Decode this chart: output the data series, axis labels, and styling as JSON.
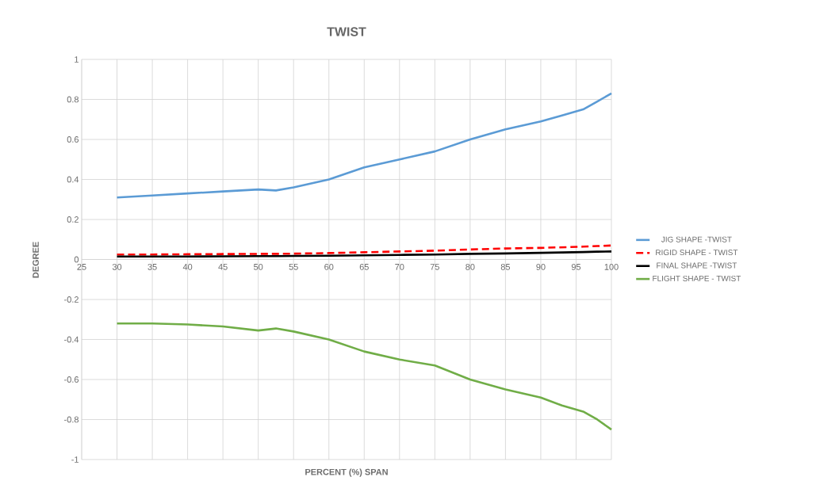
{
  "chart_data": {
    "type": "line",
    "title": "TWIST",
    "xlabel": "PERCENT (%) SPAN",
    "ylabel": "DEGREE",
    "xlim": [
      25,
      100
    ],
    "xticks": [
      25,
      30,
      35,
      40,
      45,
      50,
      55,
      60,
      65,
      70,
      75,
      80,
      85,
      90,
      95,
      100
    ],
    "ylim": [
      -1,
      1
    ],
    "yticks": [
      -1,
      -0.8,
      -0.6,
      -0.4,
      -0.2,
      0,
      0.2,
      0.4,
      0.6,
      0.8,
      1
    ],
    "grid": true,
    "legend": "right",
    "marker": "none",
    "x": [
      30,
      35,
      40,
      45,
      50,
      52.5,
      55,
      60,
      65,
      70,
      75,
      80,
      85,
      90,
      93,
      96,
      98,
      100
    ],
    "series": [
      {
        "name": "JIG SHAPE -TWIST",
        "color": "#5b9bd5",
        "line_style": "solid",
        "values": [
          0.31,
          0.32,
          0.33,
          0.34,
          0.35,
          0.345,
          0.36,
          0.4,
          0.46,
          0.5,
          0.54,
          0.6,
          0.65,
          0.69,
          0.72,
          0.75,
          0.79,
          0.83
        ]
      },
      {
        "name": "RIGID SHAPE - TWIST",
        "color": "#ff0000",
        "line_style": "dashed",
        "values": [
          0.025,
          0.025,
          0.026,
          0.027,
          0.028,
          0.028,
          0.029,
          0.032,
          0.036,
          0.04,
          0.044,
          0.05,
          0.055,
          0.058,
          0.061,
          0.064,
          0.067,
          0.07
        ]
      },
      {
        "name": "FINAL SHAPE -TWIST",
        "color": "#000000",
        "line_style": "solid",
        "values": [
          0.015,
          0.015,
          0.015,
          0.016,
          0.017,
          0.017,
          0.018,
          0.019,
          0.021,
          0.023,
          0.025,
          0.028,
          0.03,
          0.033,
          0.035,
          0.037,
          0.039,
          0.04
        ]
      },
      {
        "name": "FLIGHT SHAPE - TWIST",
        "color": "#70ad47",
        "line_style": "solid",
        "values": [
          -0.32,
          -0.32,
          -0.325,
          -0.335,
          -0.355,
          -0.345,
          -0.36,
          -0.4,
          -0.46,
          -0.5,
          -0.53,
          -0.6,
          -0.65,
          -0.69,
          -0.73,
          -0.76,
          -0.8,
          -0.85
        ]
      }
    ]
  }
}
